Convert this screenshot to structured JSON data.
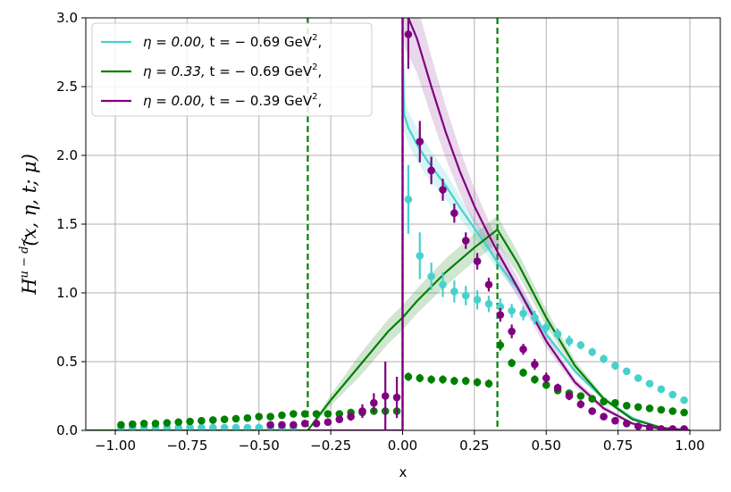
{
  "chart_data": {
    "type": "line",
    "xlabel": "x",
    "ylabel": "H̃^{u−d}(x, η, t; μ)",
    "ylabel_main": "H",
    "ylabel_sup": "u − d",
    "ylabel_rest": "(x, η, t; μ)",
    "xlim": [
      -1.1,
      1.1
    ],
    "ylim": [
      0,
      3.0
    ],
    "grid": true,
    "legend_position": "top-left",
    "xticks": [
      -1.0,
      -0.75,
      -0.5,
      -0.25,
      0.0,
      0.25,
      0.5,
      0.75,
      1.0
    ],
    "xtick_labels": [
      "−1.00",
      "−0.75",
      "−0.50",
      "−0.25",
      "0.00",
      "0.25",
      "0.50",
      "0.75",
      "1.00"
    ],
    "yticks": [
      0.0,
      0.5,
      1.0,
      1.5,
      2.0,
      2.5,
      3.0
    ],
    "ytick_labels": [
      "0.0",
      "0.5",
      "1.0",
      "1.5",
      "2.0",
      "2.5",
      "3.0"
    ],
    "vertical_lines": [
      {
        "x": -0.33,
        "color": "#008000",
        "style": "dashed"
      },
      {
        "x": 0.33,
        "color": "#008000",
        "style": "dashed"
      },
      {
        "x": 0.0,
        "color": "#800080",
        "style": "dashed"
      }
    ],
    "legend": [
      {
        "eta": "η = 0.00, ",
        "t": "t = − 0.69 GeV",
        "sup": "2",
        "end": ",",
        "color": "#48D1CC"
      },
      {
        "eta": "η = 0.33, ",
        "t": "t = − 0.69 GeV",
        "sup": "2",
        "end": ",",
        "color": "#008000"
      },
      {
        "eta": "η = 0.00, ",
        "t": "t = − 0.39 GeV",
        "sup": "2",
        "end": ",",
        "color": "#800080"
      }
    ],
    "series": [
      {
        "name": "η=0.00, t=−0.69 GeV² (curve)",
        "color": "#48D1CC",
        "band_color": "#48D1CC",
        "x": [
          0.0,
          0.005,
          0.02,
          0.05,
          0.08,
          0.1,
          0.15,
          0.2,
          0.25,
          0.3,
          0.33,
          0.4,
          0.5,
          0.6,
          0.7,
          0.8,
          0.9,
          1.0
        ],
        "y": [
          2.9,
          2.3,
          2.2,
          2.08,
          1.98,
          1.92,
          1.78,
          1.62,
          1.47,
          1.32,
          1.22,
          1.03,
          0.7,
          0.43,
          0.23,
          0.09,
          0.02,
          0.0
        ],
        "err": [
          0.1,
          0.12,
          0.12,
          0.12,
          0.12,
          0.11,
          0.1,
          0.08,
          0.07,
          0.06,
          0.05,
          0.04,
          0.03,
          0.02,
          0.01,
          0.01,
          0.0,
          0.0
        ]
      },
      {
        "name": "η=0.33, t=−0.69 GeV² (curve)",
        "color": "#008000",
        "band_color": "#2E8B2E",
        "x": [
          -0.33,
          -0.25,
          -0.15,
          -0.05,
          0.0,
          0.05,
          0.15,
          0.25,
          0.33,
          0.4,
          0.5,
          0.6,
          0.7,
          0.8,
          0.9,
          1.0
        ],
        "y": [
          0.0,
          0.22,
          0.47,
          0.72,
          0.82,
          0.94,
          1.15,
          1.33,
          1.46,
          1.22,
          0.82,
          0.47,
          0.23,
          0.08,
          0.02,
          0.0
        ],
        "err": [
          0.0,
          0.04,
          0.08,
          0.09,
          0.09,
          0.09,
          0.1,
          0.1,
          0.1,
          0.08,
          0.06,
          0.04,
          0.02,
          0.01,
          0.0,
          0.0
        ]
      },
      {
        "name": "η=0.00, t=−0.39 GeV² (curve)",
        "color": "#800080",
        "band_color": "#9B4FA8",
        "x": [
          0.0,
          0.01,
          0.05,
          0.1,
          0.15,
          0.2,
          0.25,
          0.3,
          0.33,
          0.4,
          0.5,
          0.6,
          0.7,
          0.8,
          0.9,
          1.0
        ],
        "y": [
          3.2,
          3.05,
          2.85,
          2.5,
          2.17,
          1.88,
          1.63,
          1.42,
          1.3,
          1.04,
          0.65,
          0.35,
          0.16,
          0.05,
          0.01,
          0.0
        ],
        "err": [
          0.3,
          0.28,
          0.25,
          0.22,
          0.19,
          0.16,
          0.13,
          0.1,
          0.09,
          0.07,
          0.05,
          0.03,
          0.02,
          0.01,
          0.0,
          0.0
        ]
      }
    ],
    "points": [
      {
        "name": "cyan points",
        "color": "#48D1CC",
        "x": [
          -0.98,
          -0.94,
          -0.9,
          -0.86,
          -0.82,
          -0.78,
          -0.74,
          -0.7,
          -0.66,
          -0.62,
          -0.58,
          -0.54,
          -0.5,
          -0.46,
          -0.42,
          -0.38,
          0.02,
          0.06,
          0.1,
          0.14,
          0.18,
          0.22,
          0.26,
          0.3,
          0.34,
          0.38,
          0.42,
          0.46,
          0.5,
          0.54,
          0.58,
          0.62,
          0.66,
          0.7,
          0.74,
          0.78,
          0.82,
          0.86,
          0.9,
          0.94,
          0.98
        ],
        "y": [
          0.02,
          0.02,
          0.02,
          0.02,
          0.02,
          0.02,
          0.02,
          0.02,
          0.02,
          0.02,
          0.02,
          0.02,
          0.02,
          0.02,
          0.02,
          0.02,
          1.68,
          1.27,
          1.12,
          1.06,
          1.01,
          0.98,
          0.95,
          0.92,
          0.9,
          0.87,
          0.85,
          0.82,
          0.75,
          0.7,
          0.65,
          0.62,
          0.57,
          0.52,
          0.47,
          0.43,
          0.38,
          0.34,
          0.3,
          0.26,
          0.22
        ],
        "err": [
          0,
          0,
          0,
          0,
          0,
          0,
          0,
          0,
          0,
          0,
          0,
          0,
          0,
          0,
          0,
          0,
          0.25,
          0.17,
          0.1,
          0.09,
          0.08,
          0.07,
          0.07,
          0.06,
          0.06,
          0.05,
          0.05,
          0.05,
          0.04,
          0.04,
          0.04,
          0.03,
          0.03,
          0.03,
          0.03,
          0.02,
          0.02,
          0.02,
          0.02,
          0.02,
          0.02
        ]
      },
      {
        "name": "green points",
        "color": "#008000",
        "x": [
          -0.98,
          -0.94,
          -0.9,
          -0.86,
          -0.82,
          -0.78,
          -0.74,
          -0.7,
          -0.66,
          -0.62,
          -0.58,
          -0.54,
          -0.5,
          -0.46,
          -0.42,
          -0.38,
          -0.34,
          -0.3,
          -0.26,
          -0.22,
          -0.18,
          -0.14,
          -0.1,
          -0.06,
          -0.02,
          0.02,
          0.06,
          0.1,
          0.14,
          0.18,
          0.22,
          0.26,
          0.3,
          0.34,
          0.38,
          0.42,
          0.46,
          0.5,
          0.54,
          0.58,
          0.62,
          0.66,
          0.7,
          0.74,
          0.78,
          0.82,
          0.86,
          0.9,
          0.94,
          0.98
        ],
        "y": [
          0.04,
          0.045,
          0.05,
          0.05,
          0.055,
          0.06,
          0.065,
          0.07,
          0.075,
          0.08,
          0.085,
          0.09,
          0.1,
          0.1,
          0.11,
          0.12,
          0.12,
          0.12,
          0.12,
          0.12,
          0.13,
          0.13,
          0.14,
          0.14,
          0.14,
          0.39,
          0.38,
          0.37,
          0.37,
          0.36,
          0.36,
          0.35,
          0.34,
          0.62,
          0.49,
          0.42,
          0.37,
          0.33,
          0.29,
          0.27,
          0.25,
          0.23,
          0.21,
          0.2,
          0.18,
          0.17,
          0.16,
          0.15,
          0.14,
          0.13
        ],
        "err": [
          0.01,
          0.01,
          0.01,
          0.01,
          0.01,
          0.01,
          0.01,
          0.01,
          0.01,
          0.01,
          0.01,
          0.01,
          0.01,
          0.01,
          0.01,
          0.01,
          0.02,
          0.02,
          0.02,
          0.02,
          0.02,
          0.02,
          0.02,
          0.02,
          0.02,
          0.03,
          0.03,
          0.03,
          0.03,
          0.03,
          0.03,
          0.03,
          0.03,
          0.04,
          0.03,
          0.03,
          0.03,
          0.02,
          0.02,
          0.02,
          0.02,
          0.02,
          0.02,
          0.02,
          0.02,
          0.02,
          0.02,
          0.01,
          0.01,
          0.01
        ]
      },
      {
        "name": "purple points",
        "color": "#800080",
        "x": [
          -0.46,
          -0.42,
          -0.38,
          -0.34,
          -0.3,
          -0.26,
          -0.22,
          -0.18,
          -0.14,
          -0.1,
          -0.06,
          -0.02,
          0.02,
          0.06,
          0.1,
          0.14,
          0.18,
          0.22,
          0.26,
          0.3,
          0.34,
          0.38,
          0.42,
          0.46,
          0.5,
          0.54,
          0.58,
          0.62,
          0.66,
          0.7,
          0.74,
          0.78,
          0.82,
          0.86,
          0.9,
          0.94,
          0.98
        ],
        "y": [
          0.04,
          0.04,
          0.04,
          0.05,
          0.05,
          0.06,
          0.08,
          0.1,
          0.14,
          0.2,
          0.25,
          0.24,
          2.88,
          2.1,
          1.89,
          1.75,
          1.58,
          1.38,
          1.23,
          1.06,
          0.84,
          0.72,
          0.59,
          0.48,
          0.38,
          0.31,
          0.25,
          0.19,
          0.14,
          0.1,
          0.07,
          0.05,
          0.03,
          0.02,
          0.01,
          0.01,
          0.01
        ],
        "err": [
          0.01,
          0.01,
          0.01,
          0.01,
          0.01,
          0.01,
          0.02,
          0.03,
          0.05,
          0.07,
          0.25,
          0.15,
          0.25,
          0.15,
          0.1,
          0.08,
          0.07,
          0.06,
          0.06,
          0.05,
          0.05,
          0.05,
          0.04,
          0.04,
          0.04,
          0.03,
          0.03,
          0.03,
          0.02,
          0.02,
          0.02,
          0.02,
          0.01,
          0.01,
          0.01,
          0.01,
          0.01
        ]
      }
    ]
  }
}
